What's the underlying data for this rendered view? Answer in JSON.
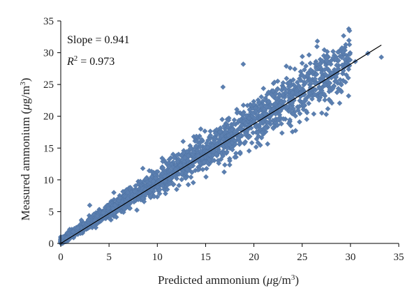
{
  "chart_data": {
    "type": "scatter",
    "title": "",
    "xlabel": "Predicted ammonium (μg/m3)",
    "ylabel": "Measured ammonium (μg/m3)",
    "xlim": [
      0,
      35
    ],
    "ylim": [
      0,
      35
    ],
    "xticks": [
      0,
      5,
      10,
      15,
      20,
      25,
      30,
      35
    ],
    "yticks": [
      0,
      5,
      10,
      15,
      20,
      25,
      30,
      35
    ],
    "grid": false,
    "marker": "diamond",
    "marker_color": "#5b7fb0",
    "line_color": "#000000",
    "annotations": [
      {
        "text": "Slope = 0.941"
      },
      {
        "text": "R2 = 0.973"
      }
    ],
    "fit_line": {
      "x": [
        0,
        33.2
      ],
      "y": [
        0.0,
        31.2
      ]
    },
    "outliers": [
      {
        "x": 18.9,
        "y": 28.2
      },
      {
        "x": 16.8,
        "y": 24.6
      },
      {
        "x": 10.5,
        "y": 13.4
      },
      {
        "x": 13.2,
        "y": 13.8
      },
      {
        "x": 15.5,
        "y": 17.0
      },
      {
        "x": 14.5,
        "y": 18.0
      },
      {
        "x": 22.0,
        "y": 24.0
      },
      {
        "x": 33.2,
        "y": 29.3
      },
      {
        "x": 31.8,
        "y": 29.9
      },
      {
        "x": 30.5,
        "y": 28.6
      },
      {
        "x": 26.5,
        "y": 26.6
      },
      {
        "x": 27.0,
        "y": 25.6
      },
      {
        "x": 28.5,
        "y": 27.2
      },
      {
        "x": 29.5,
        "y": 27.9
      },
      {
        "x": 24.5,
        "y": 23.4
      },
      {
        "x": 25.2,
        "y": 21.8
      },
      {
        "x": 22.5,
        "y": 19.5
      },
      {
        "x": 8.5,
        "y": 11.8
      },
      {
        "x": 5.5,
        "y": 8.0
      },
      {
        "x": 3.0,
        "y": 6.0
      },
      {
        "x": 12.0,
        "y": 8.5
      },
      {
        "x": 17.5,
        "y": 13.0
      }
    ]
  }
}
